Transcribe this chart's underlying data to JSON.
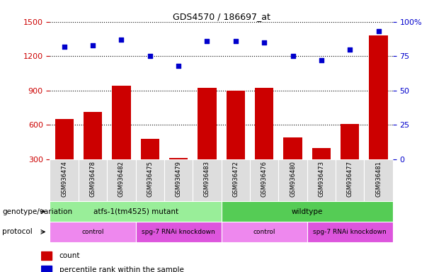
{
  "title": "GDS4570 / 186697_at",
  "samples": [
    "GSM936474",
    "GSM936478",
    "GSM936482",
    "GSM936475",
    "GSM936479",
    "GSM936483",
    "GSM936472",
    "GSM936476",
    "GSM936480",
    "GSM936473",
    "GSM936477",
    "GSM936481"
  ],
  "counts": [
    650,
    710,
    940,
    480,
    310,
    920,
    900,
    920,
    490,
    395,
    610,
    1380
  ],
  "percentile_ranks": [
    82,
    83,
    87,
    75,
    68,
    86,
    86,
    85,
    75,
    72,
    80,
    93
  ],
  "ylim_left": [
    300,
    1500
  ],
  "ylim_right": [
    0,
    100
  ],
  "yticks_left": [
    300,
    600,
    900,
    1200,
    1500
  ],
  "yticks_right": [
    0,
    25,
    50,
    75,
    100
  ],
  "bar_color": "#cc0000",
  "dot_color": "#0000cc",
  "genotype_groups": [
    {
      "label": "atfs-1(tm4525) mutant",
      "start": 0,
      "end": 6,
      "color": "#99ee99"
    },
    {
      "label": "wildtype",
      "start": 6,
      "end": 12,
      "color": "#55cc55"
    }
  ],
  "protocol_groups": [
    {
      "label": "control",
      "start": 0,
      "end": 3,
      "color": "#ee88ee"
    },
    {
      "label": "spg-7 RNAi knockdown",
      "start": 3,
      "end": 6,
      "color": "#dd55dd"
    },
    {
      "label": "control",
      "start": 6,
      "end": 9,
      "color": "#ee88ee"
    },
    {
      "label": "spg-7 RNAi knockdown",
      "start": 9,
      "end": 12,
      "color": "#dd55dd"
    }
  ],
  "legend_items": [
    {
      "label": "count",
      "color": "#cc0000"
    },
    {
      "label": "percentile rank within the sample",
      "color": "#0000cc"
    }
  ],
  "left_label_color": "#cc0000",
  "right_label_color": "#0000cc",
  "genotype_label": "genotype/variation",
  "protocol_label": "protocol"
}
